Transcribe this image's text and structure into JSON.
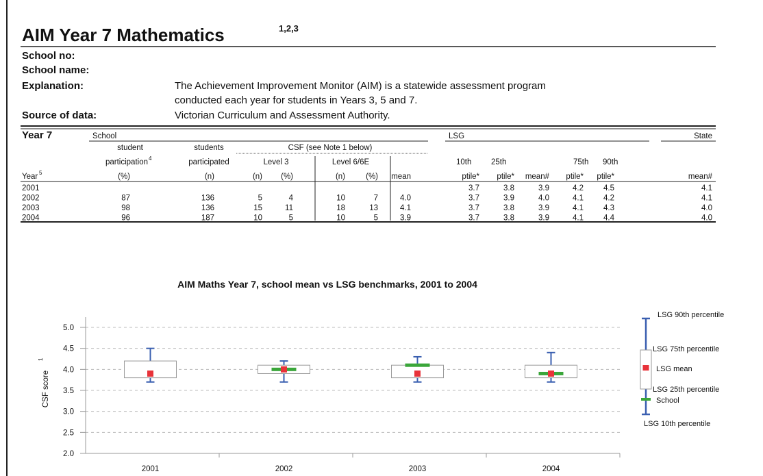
{
  "header": {
    "title": "AIM Year 7 Mathematics",
    "title_sup": "1,2,3"
  },
  "fields": [
    {
      "label": "School no:"
    },
    {
      "label": "School name:"
    },
    {
      "label": "Explanation:",
      "lines": [
        "The Achievement Improvement Monitor (AIM) is a statewide assessment program",
        "conducted each year for students in Years 3, 5 and 7."
      ]
    },
    {
      "label": "Source of data:",
      "lines": [
        "Victorian Curriculum and Assessment Authority."
      ]
    }
  ],
  "table": {
    "section": "Year 7",
    "groups": [
      "School",
      "LSG",
      "State"
    ],
    "csf": "CSF (see Note 1 below)",
    "head1": [
      "student",
      "students"
    ],
    "head2": [
      "participation",
      "participated",
      "Level 3",
      "Level 6/6E",
      "10th",
      "25th",
      "75th",
      "90th"
    ],
    "participation_sup": "4",
    "head3": [
      "Year",
      "(%)",
      "(n)",
      "(n)",
      "(%)",
      "(n)",
      "(%)",
      "mean",
      "ptile*",
      "ptile*",
      "mean#",
      "ptile*",
      "ptile*",
      "mean#"
    ],
    "year_sup": "5",
    "rows": [
      [
        "2001",
        null,
        null,
        null,
        null,
        null,
        null,
        null,
        "3.7",
        "3.8",
        "3.9",
        "4.2",
        "4.5",
        "4.1"
      ],
      [
        "2002",
        "87",
        "136",
        "5",
        "4",
        "10",
        "7",
        "4.0",
        "3.7",
        "3.9",
        "4.0",
        "4.1",
        "4.2",
        "4.1"
      ],
      [
        "2003",
        "98",
        "136",
        "15",
        "11",
        "18",
        "13",
        "4.1",
        "3.7",
        "3.8",
        "3.9",
        "4.1",
        "4.3",
        "4.0"
      ],
      [
        "2004",
        "96",
        "187",
        "10",
        "5",
        "10",
        "5",
        "3.9",
        "3.7",
        "3.8",
        "3.9",
        "4.1",
        "4.4",
        "4.0"
      ]
    ]
  },
  "chart_data": {
    "type": "box",
    "title": "AIM Maths Year 7, school mean vs LSG benchmarks, 2001 to 2004",
    "ylabel": "CSF score",
    "ylabel_sup": "1",
    "categories": [
      "2001",
      "2002",
      "2003",
      "2004"
    ],
    "ylim": [
      2.0,
      5.2
    ],
    "yticks": [
      {
        "value": 2,
        "label": "2.0"
      },
      {
        "value": 2.5,
        "label": "2.5"
      },
      {
        "value": 3,
        "label": "3.0"
      },
      {
        "value": 3.5,
        "label": "3.5"
      },
      {
        "value": 4,
        "label": "4.0"
      },
      {
        "value": 4.5,
        "label": "4.5"
      },
      {
        "value": 5,
        "label": "5.0"
      }
    ],
    "grid": true,
    "series": [
      {
        "name": "LSG 90th percentile",
        "color": "#3a5fb0",
        "values": [
          4.5,
          4.2,
          4.3,
          4.4
        ]
      },
      {
        "name": "LSG 75th percentile",
        "color": "#999999",
        "values": [
          4.2,
          4.1,
          4.1,
          4.1
        ]
      },
      {
        "name": "LSG mean",
        "color": "#e8333a",
        "values": [
          3.9,
          4.0,
          3.9,
          3.9
        ]
      },
      {
        "name": "LSG 25th percentile",
        "color": "#999999",
        "values": [
          3.8,
          3.9,
          3.8,
          3.8
        ]
      },
      {
        "name": "School",
        "color": "#3aa63a",
        "values": [
          null,
          4.0,
          4.1,
          3.9
        ]
      },
      {
        "name": "LSG 10th percentile",
        "color": "#3a5fb0",
        "values": [
          3.7,
          3.7,
          3.7,
          3.7
        ]
      }
    ]
  }
}
